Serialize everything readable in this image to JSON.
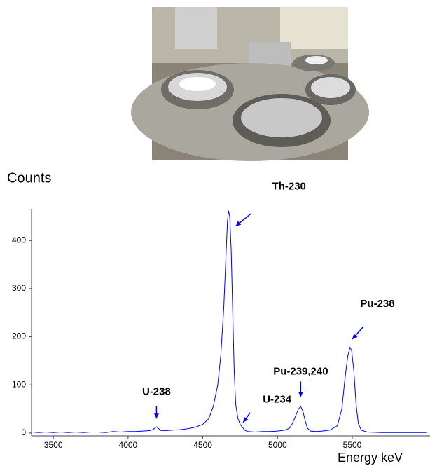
{
  "chart_data": {
    "type": "line",
    "y_label": "Counts",
    "x_label": "Energy keV",
    "color": "#0000ff",
    "xlim": [
      3354,
      6020
    ],
    "ylim": [
      -6,
      463
    ],
    "xticks": [
      3500,
      4000,
      4500,
      5000,
      5500
    ],
    "yticks": [
      0,
      100,
      200,
      300,
      400
    ],
    "x": [
      3360,
      3400,
      3450,
      3500,
      3550,
      3600,
      3650,
      3700,
      3750,
      3800,
      3850,
      3900,
      3950,
      4000,
      4050,
      4100,
      4150,
      4170,
      4190,
      4205,
      4220,
      4260,
      4300,
      4350,
      4400,
      4450,
      4500,
      4540,
      4570,
      4600,
      4620,
      4640,
      4655,
      4665,
      4672,
      4680,
      4690,
      4700,
      4710,
      4720,
      4735,
      4750,
      4765,
      4780,
      4800,
      4850,
      4900,
      4950,
      5000,
      5050,
      5080,
      5100,
      5120,
      5140,
      5155,
      5170,
      5185,
      5200,
      5220,
      5260,
      5300,
      5350,
      5400,
      5430,
      5450,
      5470,
      5485,
      5495,
      5510,
      5525,
      5540,
      5560,
      5600,
      5700,
      5800,
      5900,
      6000
    ],
    "values": [
      2,
      1,
      2,
      1,
      2,
      1,
      2,
      1,
      2,
      2,
      1,
      3,
      2,
      3,
      3,
      4,
      5,
      8,
      13,
      9,
      5,
      5,
      6,
      7,
      9,
      12,
      18,
      30,
      55,
      100,
      160,
      260,
      370,
      440,
      462,
      450,
      380,
      250,
      130,
      60,
      30,
      18,
      12,
      6,
      3,
      2,
      3,
      3,
      4,
      6,
      10,
      20,
      35,
      50,
      55,
      45,
      25,
      10,
      4,
      3,
      4,
      6,
      15,
      50,
      110,
      160,
      178,
      172,
      130,
      60,
      20,
      6,
      2,
      1,
      1,
      1,
      1
    ],
    "annotations": [
      {
        "text": "Th-230",
        "x": 4720,
        "y": 430
      },
      {
        "text": "U-238",
        "x": 4190,
        "y": 30
      },
      {
        "text": "U-234",
        "x": 4770,
        "y": 22
      },
      {
        "text": "Pu-239,240",
        "x": 5155,
        "y": 75
      },
      {
        "text": "Pu-238",
        "x": 5500,
        "y": 195
      }
    ]
  }
}
